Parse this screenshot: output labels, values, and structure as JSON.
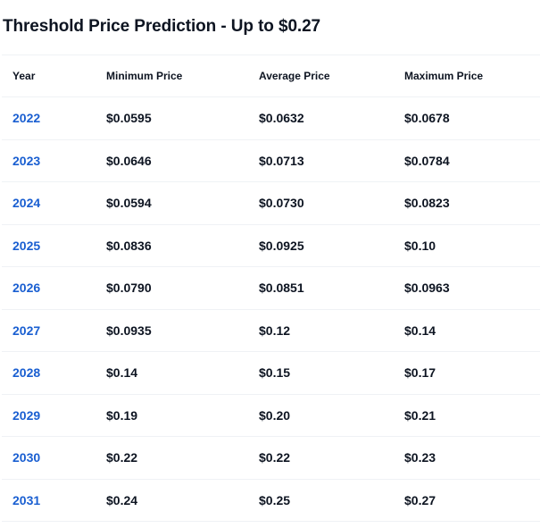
{
  "title": "Threshold Price Prediction - Up to $0.27",
  "table": {
    "headers": {
      "year": "Year",
      "min": "Minimum Price",
      "avg": "Average Price",
      "max": "Maximum Price"
    },
    "rows": [
      {
        "year": "2022",
        "min": "$0.0595",
        "avg": "$0.0632",
        "max": "$0.0678"
      },
      {
        "year": "2023",
        "min": "$0.0646",
        "avg": "$0.0713",
        "max": "$0.0784"
      },
      {
        "year": "2024",
        "min": "$0.0594",
        "avg": "$0.0730",
        "max": "$0.0823"
      },
      {
        "year": "2025",
        "min": "$0.0836",
        "avg": "$0.0925",
        "max": "$0.10"
      },
      {
        "year": "2026",
        "min": "$0.0790",
        "avg": "$0.0851",
        "max": "$0.0963"
      },
      {
        "year": "2027",
        "min": "$0.0935",
        "avg": "$0.12",
        "max": "$0.14"
      },
      {
        "year": "2028",
        "min": "$0.14",
        "avg": "$0.15",
        "max": "$0.17"
      },
      {
        "year": "2029",
        "min": "$0.19",
        "avg": "$0.20",
        "max": "$0.21"
      },
      {
        "year": "2030",
        "min": "$0.22",
        "avg": "$0.22",
        "max": "$0.23"
      },
      {
        "year": "2031",
        "min": "$0.24",
        "avg": "$0.25",
        "max": "$0.27"
      }
    ]
  },
  "colors": {
    "text": "#0d1421",
    "link": "#1a5fd1",
    "divider": "#eff2f5"
  }
}
